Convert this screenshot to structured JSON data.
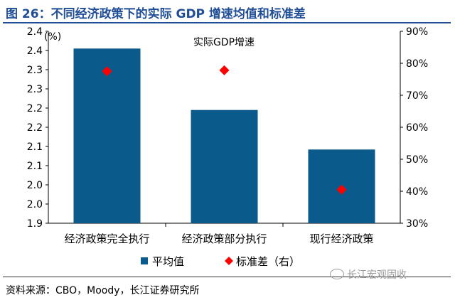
{
  "header": {
    "title": "图 26：不同经济政策下的实际 GDP 增速均值和标准差"
  },
  "footer": {
    "source": "资料来源：CBO，Moody，长江证券研究所",
    "watermark": "长江宏观固收",
    "watermark_icon": "wechat-icon"
  },
  "colors": {
    "title": "#1f4e96",
    "bar": "#0a5a8c",
    "marker": "#ff0000"
  },
  "chart_data": {
    "type": "bar",
    "title": "实际GDP增速",
    "left_unit": "(%)",
    "categories": [
      "经济政策完全执行",
      "经济政策部分执行",
      "现行经济政策"
    ],
    "series": [
      {
        "name": "平均值",
        "type": "bar",
        "axis": "left",
        "values": [
          2.355,
          2.195,
          2.092
        ]
      },
      {
        "name": "标准差（右）",
        "type": "scatter",
        "marker": "diamond",
        "axis": "right",
        "values": [
          0.775,
          0.778,
          0.405
        ]
      }
    ],
    "y_left": {
      "min": 1.9,
      "max": 2.4,
      "ticks": [
        1.9,
        1.95,
        2.0,
        2.05,
        2.1,
        2.15,
        2.2,
        2.25,
        2.3,
        2.35,
        2.4
      ],
      "tick_labels": [
        "1.9",
        "2.0",
        "2.0",
        "2.1",
        "2.1",
        "2.2",
        "2.2",
        "2.3",
        "2.3",
        "2.4",
        "2.4"
      ]
    },
    "y_right": {
      "min": 0.3,
      "max": 0.9,
      "ticks": [
        0.3,
        0.4,
        0.5,
        0.6,
        0.7,
        0.8,
        0.9
      ],
      "tick_labels": [
        "30%",
        "40%",
        "50%",
        "60%",
        "70%",
        "80%",
        "90%"
      ]
    },
    "grid": false,
    "legend_position": "bottom-left"
  }
}
